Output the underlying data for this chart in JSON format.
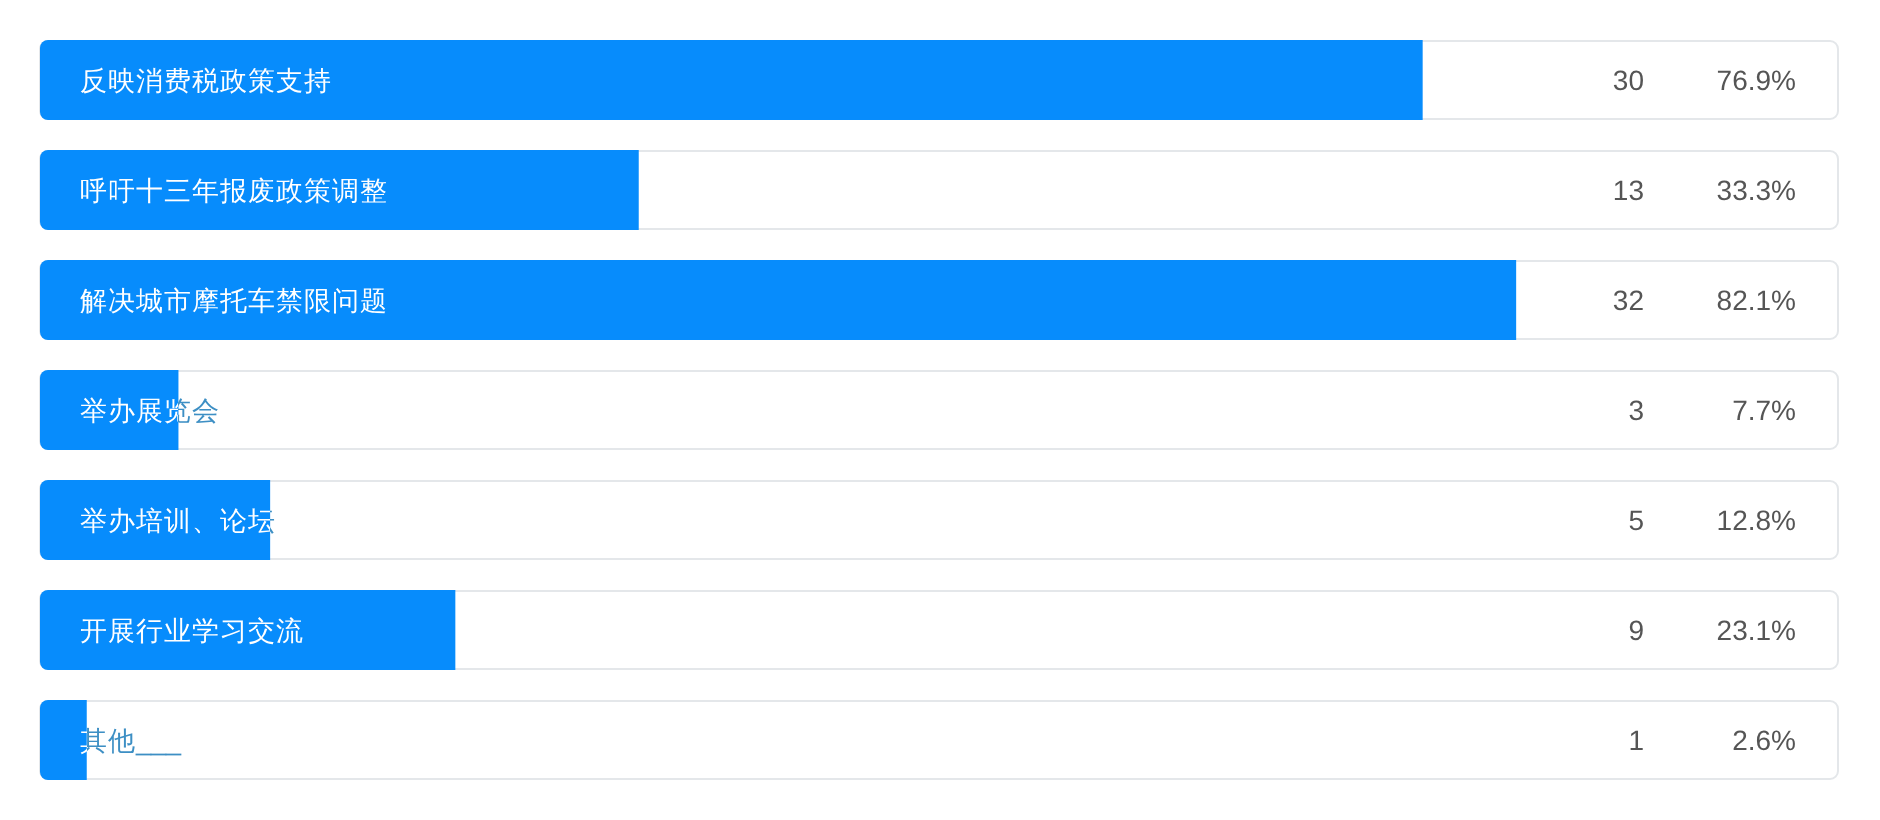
{
  "chart_data": {
    "type": "bar",
    "orientation": "horizontal",
    "categories": [
      "反映消费税政策支持",
      "呼吁十三年报废政策调整",
      "解决城市摩托车禁限问题",
      "举办展览会",
      "举办培训、论坛",
      "开展行业学习交流",
      "其他___"
    ],
    "values": [
      76.9,
      33.3,
      82.1,
      7.7,
      12.8,
      23.1,
      2.6
    ],
    "color": "#078cfc",
    "xlim": [
      0,
      100
    ],
    "tick_labels": "y",
    "value_labels": [
      "76.9%",
      "33.3%",
      "82.1%",
      "7.7%",
      "12.8%",
      "23.1%",
      "2.6%"
    ],
    "annotations": [
      "30",
      "13",
      "32",
      "3",
      "5",
      "9",
      "1"
    ]
  }
}
